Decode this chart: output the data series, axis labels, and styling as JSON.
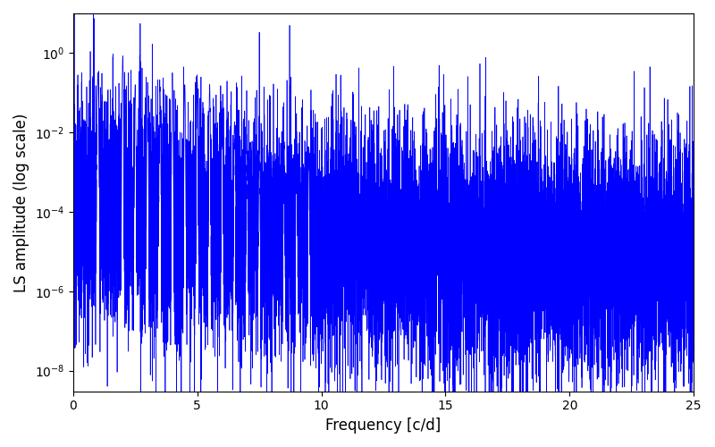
{
  "xlabel": "Frequency [c/d]",
  "ylabel": "LS amplitude (log scale)",
  "xlim": [
    0,
    25
  ],
  "ylim_low": 3e-09,
  "ylim_high": 10,
  "yscale": "log",
  "line_color": "#0000ff",
  "line_width": 0.5,
  "background_color": "#ffffff",
  "fig_facecolor": "#ffffff",
  "figsize": [
    8.0,
    5.0
  ],
  "dpi": 100,
  "seed": 12345,
  "n_points": 12000,
  "yticks": [
    1e-08,
    1e-06,
    0.0001,
    0.01,
    1.0
  ],
  "xticks": [
    0,
    5,
    10,
    15,
    20,
    25
  ],
  "xlabel_fontsize": 12,
  "ylabel_fontsize": 12
}
